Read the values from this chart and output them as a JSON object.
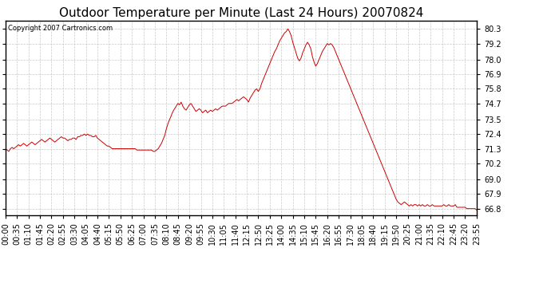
{
  "title": "Outdoor Temperature per Minute (Last 24 Hours) 20070824",
  "copyright_text": "Copyright 2007 Cartronics.com",
  "line_color": "#cc0000",
  "background_color": "#ffffff",
  "grid_color": "#bbbbbb",
  "ylim": [
    66.3,
    80.9
  ],
  "yticks": [
    66.8,
    67.9,
    69.0,
    70.2,
    71.3,
    72.4,
    73.5,
    74.7,
    75.8,
    76.9,
    78.0,
    79.2,
    80.3
  ],
  "title_fontsize": 11,
  "tick_fontsize": 7,
  "xlabel_rotation": 90,
  "xtick_labels": [
    "00:00",
    "00:35",
    "01:10",
    "01:45",
    "02:20",
    "02:55",
    "03:30",
    "04:05",
    "04:40",
    "05:15",
    "05:50",
    "06:25",
    "07:00",
    "07:35",
    "08:10",
    "08:45",
    "09:20",
    "09:55",
    "10:30",
    "11:05",
    "11:40",
    "12:15",
    "12:50",
    "13:25",
    "14:00",
    "14:35",
    "15:10",
    "15:45",
    "16:20",
    "16:55",
    "17:30",
    "18:05",
    "18:40",
    "19:15",
    "19:50",
    "20:25",
    "21:00",
    "21:35",
    "22:10",
    "22:45",
    "23:20",
    "23:55"
  ],
  "minutes_per_tick": 35,
  "minutes_per_sample": 5,
  "data_points": [
    71.3,
    71.2,
    71.1,
    71.3,
    71.4,
    71.3,
    71.4,
    71.5,
    71.6,
    71.5,
    71.6,
    71.7,
    71.6,
    71.5,
    71.6,
    71.7,
    71.8,
    71.7,
    71.6,
    71.7,
    71.8,
    71.9,
    72.0,
    71.9,
    71.8,
    71.9,
    72.0,
    72.1,
    72.0,
    71.9,
    71.8,
    71.9,
    72.0,
    72.1,
    72.2,
    72.1,
    72.1,
    72.0,
    71.9,
    72.0,
    72.0,
    72.1,
    72.1,
    72.0,
    72.2,
    72.2,
    72.3,
    72.3,
    72.4,
    72.3,
    72.4,
    72.3,
    72.3,
    72.2,
    72.2,
    72.3,
    72.1,
    72.0,
    71.9,
    71.8,
    71.7,
    71.6,
    71.5,
    71.5,
    71.4,
    71.3,
    71.3,
    71.3,
    71.3,
    71.3,
    71.3,
    71.3,
    71.3,
    71.3,
    71.3,
    71.3,
    71.3,
    71.3,
    71.3,
    71.3,
    71.2,
    71.2,
    71.2,
    71.2,
    71.2,
    71.2,
    71.2,
    71.2,
    71.2,
    71.2,
    71.1,
    71.1,
    71.2,
    71.3,
    71.5,
    71.7,
    72.0,
    72.3,
    72.8,
    73.2,
    73.5,
    73.8,
    74.1,
    74.3,
    74.5,
    74.7,
    74.6,
    74.8,
    74.5,
    74.3,
    74.2,
    74.4,
    74.6,
    74.7,
    74.5,
    74.3,
    74.1,
    74.2,
    74.3,
    74.2,
    74.0,
    74.1,
    74.2,
    74.0,
    74.1,
    74.2,
    74.1,
    74.2,
    74.3,
    74.2,
    74.3,
    74.4,
    74.5,
    74.5,
    74.5,
    74.6,
    74.7,
    74.7,
    74.7,
    74.8,
    74.9,
    75.0,
    74.9,
    75.0,
    75.1,
    75.2,
    75.1,
    75.0,
    74.8,
    75.1,
    75.3,
    75.5,
    75.7,
    75.8,
    75.6,
    75.8,
    76.2,
    76.5,
    76.8,
    77.1,
    77.4,
    77.7,
    78.0,
    78.3,
    78.6,
    78.8,
    79.1,
    79.4,
    79.6,
    79.8,
    80.0,
    80.1,
    80.3,
    80.1,
    79.8,
    79.3,
    78.9,
    78.5,
    78.1,
    77.9,
    78.1,
    78.5,
    78.8,
    79.1,
    79.3,
    79.1,
    78.8,
    78.2,
    77.8,
    77.5,
    77.7,
    78.0,
    78.3,
    78.6,
    78.8,
    79.0,
    79.2,
    79.1,
    79.2,
    79.1,
    78.9,
    78.6,
    78.3,
    78.0,
    77.7,
    77.4,
    77.1,
    76.8,
    76.5,
    76.2,
    75.9,
    75.6,
    75.3,
    75.0,
    74.7,
    74.4,
    74.1,
    73.8,
    73.5,
    73.2,
    72.9,
    72.6,
    72.3,
    72.0,
    71.7,
    71.4,
    71.1,
    70.8,
    70.5,
    70.2,
    69.9,
    69.6,
    69.3,
    69.0,
    68.7,
    68.4,
    68.1,
    67.8,
    67.5,
    67.3,
    67.2,
    67.1,
    67.2,
    67.3,
    67.2,
    67.1,
    67.0,
    67.1,
    67.0,
    67.1,
    67.1,
    67.0,
    67.1,
    67.0,
    67.1,
    67.0,
    67.0,
    67.1,
    67.0,
    67.0,
    67.1,
    67.0,
    67.0,
    67.0,
    67.0,
    67.0,
    67.0,
    67.1,
    67.0,
    67.0,
    67.1,
    67.0,
    67.0,
    67.0,
    67.1,
    66.9,
    66.9,
    66.9,
    66.9,
    66.9,
    66.9,
    66.8,
    66.8,
    66.8,
    66.8,
    66.8,
    66.8,
    66.7
  ]
}
